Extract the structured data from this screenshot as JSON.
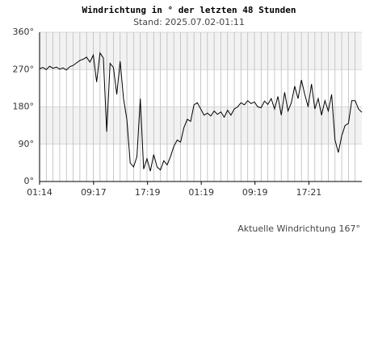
{
  "chart_data": {
    "type": "line",
    "title": "Windrichtung in ° der letzten 48 Stunden",
    "subtitle": "Stand: 2025.07.02-01:11",
    "annotation": "Aktuelle Windrichtung 167°",
    "x": [
      0,
      0.5,
      1,
      1.5,
      2,
      2.5,
      3,
      3.5,
      4,
      4.5,
      5,
      5.5,
      6,
      6.5,
      7,
      7.5,
      8,
      8.5,
      9,
      9.5,
      10,
      10.5,
      11,
      11.5,
      12,
      12.5,
      13,
      13.5,
      14,
      14.5,
      15,
      15.5,
      16,
      16.5,
      17,
      17.5,
      18,
      18.5,
      19,
      19.5,
      20,
      20.5,
      21,
      21.5,
      22,
      22.5,
      23,
      23.5,
      24,
      24.5,
      25,
      25.5,
      26,
      26.5,
      27,
      27.5,
      28,
      28.5,
      29,
      29.5,
      30,
      30.5,
      31,
      31.5,
      32,
      32.5,
      33,
      33.5,
      34,
      34.5,
      35,
      35.5,
      36,
      36.5,
      37,
      37.5,
      38,
      38.5,
      39,
      39.5,
      40,
      40.5,
      41,
      41.5,
      42,
      42.5,
      43,
      43.5,
      44,
      44.5,
      45,
      45.5,
      46,
      46.5,
      47,
      47.5,
      48
    ],
    "series": [
      {
        "color": "#000000",
        "values": [
          272,
          275,
          270,
          278,
          273,
          276,
          271,
          274,
          269,
          277,
          280,
          286,
          292,
          295,
          300,
          288,
          305,
          240,
          310,
          298,
          120,
          285,
          275,
          210,
          290,
          200,
          150,
          45,
          35,
          60,
          200,
          30,
          55,
          25,
          65,
          35,
          28,
          50,
          40,
          60,
          85,
          100,
          95,
          130,
          150,
          145,
          185,
          190,
          175,
          160,
          165,
          158,
          170,
          162,
          168,
          155,
          172,
          160,
          175,
          180,
          190,
          185,
          195,
          188,
          192,
          180,
          178,
          194,
          186,
          200,
          175,
          205,
          160,
          215,
          170,
          190,
          230,
          200,
          245,
          210,
          180,
          235,
          175,
          200,
          160,
          195,
          170,
          210,
          100,
          70,
          110,
          135,
          140,
          195,
          195,
          175,
          167
        ]
      }
    ],
    "xlim": [
      0,
      48
    ],
    "xticks": [
      {
        "value": 0,
        "label": "01:14"
      },
      {
        "value": 8.05,
        "label": "09:17"
      },
      {
        "value": 16.083,
        "label": "17:19"
      },
      {
        "value": 24.083,
        "label": "01:19"
      },
      {
        "value": 32.083,
        "label": "09:19"
      },
      {
        "value": 40.117,
        "label": "17:21"
      }
    ],
    "ylim": [
      0,
      360
    ],
    "yticks": [
      {
        "value": 0,
        "label": "0°"
      },
      {
        "value": 90,
        "label": "90°"
      },
      {
        "value": 180,
        "label": "180°"
      },
      {
        "value": 270,
        "label": "270°"
      },
      {
        "value": 360,
        "label": "360°"
      }
    ],
    "grid": true
  }
}
